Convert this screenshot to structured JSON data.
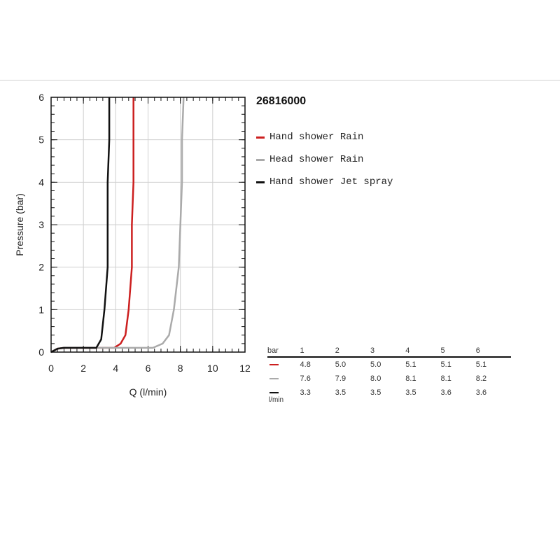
{
  "model": "26816000",
  "legend": [
    {
      "label": "Hand shower Rain",
      "color": "#cc1f1f"
    },
    {
      "label": "Head shower Rain",
      "color": "#aaaaaa"
    },
    {
      "label": "Hand shower Jet spray",
      "color": "#111111"
    }
  ],
  "table": {
    "head_label": "bar",
    "unit_label": "l/min",
    "pressures": [
      "1",
      "2",
      "3",
      "4",
      "5",
      "6"
    ],
    "rows": [
      {
        "color": "#cc1f1f",
        "values": [
          "4.8",
          "5.0",
          "5.0",
          "5.1",
          "5.1",
          "5.1"
        ]
      },
      {
        "color": "#aaaaaa",
        "values": [
          "7.6",
          "7.9",
          "8.0",
          "8.1",
          "8.1",
          "8.2"
        ]
      },
      {
        "color": "#111111",
        "values": [
          "3.3",
          "3.5",
          "3.5",
          "3.5",
          "3.6",
          "3.6"
        ]
      }
    ]
  },
  "chart_data": {
    "type": "line",
    "xlabel": "Q (l/min)",
    "ylabel": "Pressure (bar)",
    "xlim": [
      0,
      12
    ],
    "ylim": [
      0,
      6
    ],
    "xticks": [
      "0",
      "2",
      "4",
      "6",
      "8",
      "10",
      "12"
    ],
    "yticks": [
      "0",
      "1",
      "2",
      "3",
      "4",
      "5",
      "6"
    ],
    "grid": true,
    "series": [
      {
        "name": "Hand shower Rain",
        "color": "#cc1f1f",
        "points": [
          [
            0,
            0
          ],
          [
            0.4,
            0.08
          ],
          [
            0.8,
            0.1
          ],
          [
            3.9,
            0.1
          ],
          [
            4.3,
            0.2
          ],
          [
            4.6,
            0.4
          ],
          [
            4.8,
            1.0
          ],
          [
            5.0,
            2.0
          ],
          [
            5.0,
            3.0
          ],
          [
            5.1,
            4.0
          ],
          [
            5.1,
            5.0
          ],
          [
            5.1,
            6.0
          ]
        ]
      },
      {
        "name": "Head shower Rain",
        "color": "#aaaaaa",
        "points": [
          [
            0,
            0
          ],
          [
            0.4,
            0.08
          ],
          [
            0.8,
            0.1
          ],
          [
            6.3,
            0.1
          ],
          [
            6.9,
            0.2
          ],
          [
            7.3,
            0.4
          ],
          [
            7.6,
            1.0
          ],
          [
            7.9,
            2.0
          ],
          [
            8.0,
            3.0
          ],
          [
            8.1,
            4.0
          ],
          [
            8.1,
            5.0
          ],
          [
            8.2,
            6.0
          ]
        ]
      },
      {
        "name": "Hand shower Jet spray",
        "color": "#111111",
        "points": [
          [
            0,
            0
          ],
          [
            0.4,
            0.08
          ],
          [
            0.8,
            0.1
          ],
          [
            2.8,
            0.1
          ],
          [
            3.1,
            0.3
          ],
          [
            3.3,
            1.0
          ],
          [
            3.5,
            2.0
          ],
          [
            3.5,
            3.0
          ],
          [
            3.5,
            4.0
          ],
          [
            3.6,
            5.0
          ],
          [
            3.6,
            6.0
          ]
        ]
      }
    ]
  }
}
